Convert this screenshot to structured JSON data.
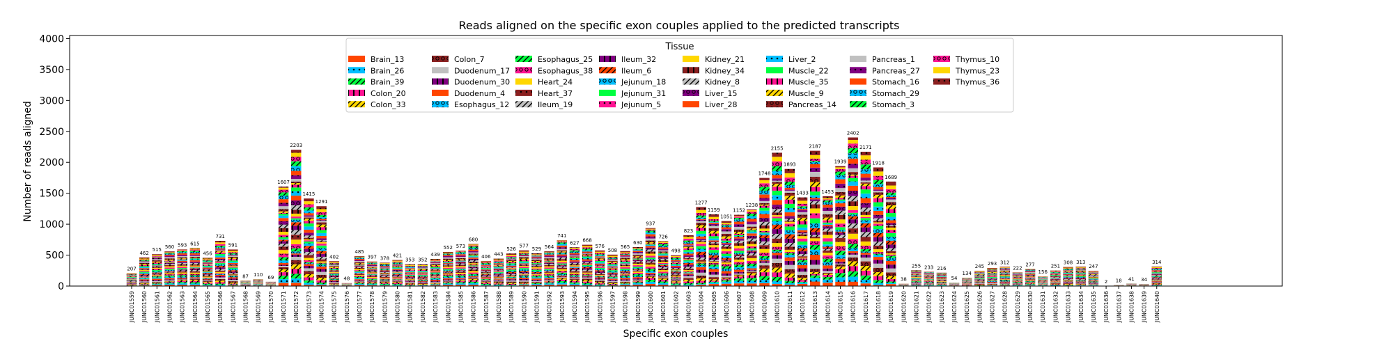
{
  "chart_data": {
    "type": "bar",
    "stacked": true,
    "title": "Reads aligned on the specific exon couples applied to the predicted transcripts",
    "xlabel": "Specific exon couples",
    "ylabel": "Number of reads aligned",
    "ylim": [
      0,
      4050
    ],
    "yticks": [
      0,
      500,
      1000,
      1500,
      2000,
      2500,
      3000,
      3500,
      4000
    ],
    "legend_title": "Tissue",
    "legend_position": "top-center",
    "grid": false,
    "categories": [
      "JUNC01559",
      "JUNC01560",
      "JUNC01561",
      "JUNC01562",
      "JUNC01563",
      "JUNC01564",
      "JUNC01565",
      "JUNC01566",
      "JUNC01567",
      "JUNC01568",
      "JUNC01569",
      "JUNC01570",
      "JUNC01571",
      "JUNC01572",
      "JUNC01573",
      "JUNC01574",
      "JUNC01575",
      "JUNC01576",
      "JUNC01577",
      "JUNC01578",
      "JUNC01579",
      "JUNC01580",
      "JUNC01581",
      "JUNC01582",
      "JUNC01583",
      "JUNC01584",
      "JUNC01585",
      "JUNC01586",
      "JUNC01587",
      "JUNC01588",
      "JUNC01589",
      "JUNC01590",
      "JUNC01591",
      "JUNC01592",
      "JUNC01593",
      "JUNC01594",
      "JUNC01595",
      "JUNC01596",
      "JUNC01597",
      "JUNC01598",
      "JUNC01599",
      "JUNC01600",
      "JUNC01601",
      "JUNC01602",
      "JUNC01603",
      "JUNC01604",
      "JUNC01605",
      "JUNC01606",
      "JUNC01607",
      "JUNC01608",
      "JUNC01609",
      "JUNC01610",
      "JUNC01611",
      "JUNC01612",
      "JUNC01613",
      "JUNC01614",
      "JUNC01615",
      "JUNC01616",
      "JUNC01617",
      "JUNC01618",
      "JUNC01619",
      "JUNC01620",
      "JUNC01621",
      "JUNC01622",
      "JUNC01623",
      "JUNC01624",
      "JUNC01625",
      "JUNC01626",
      "JUNC01627",
      "JUNC01628",
      "JUNC01629",
      "JUNC01630",
      "JUNC01631",
      "JUNC01632",
      "JUNC01633",
      "JUNC01634",
      "JUNC01635",
      "JUNC01636",
      "JUNC01637",
      "JUNC01638",
      "JUNC01639",
      "JUNC01640"
    ],
    "totals": [
      207,
      462,
      515,
      560,
      593,
      615,
      456,
      731,
      591,
      87,
      110,
      69,
      1607,
      2203,
      1415,
      1291,
      402,
      48,
      485,
      397,
      378,
      421,
      353,
      352,
      439,
      552,
      573,
      680,
      406,
      443,
      526,
      577,
      529,
      564,
      741,
      627,
      668,
      576,
      508,
      565,
      630,
      937,
      726,
      498,
      823,
      1277,
      1159,
      1051,
      1152,
      1238,
      1748,
      2155,
      1893,
      1433,
      2187,
      1453,
      1939,
      2402,
      2171,
      1918,
      1689,
      38,
      255,
      233,
      216,
      54,
      134,
      245,
      293,
      312,
      222,
      277,
      156,
      251,
      308,
      313,
      247,
      2,
      18,
      41,
      34,
      314
    ],
    "series": [
      {
        "name": "Brain_13",
        "color": "#ff4500",
        "hatch": ""
      },
      {
        "name": "Brain_26",
        "color": "#00bfff",
        "hatch": "."
      },
      {
        "name": "Brain_39",
        "color": "#00ff40",
        "hatch": "/"
      },
      {
        "name": "Colon_20",
        "color": "#ff1493",
        "hatch": "|"
      },
      {
        "name": "Colon_33",
        "color": "#ffd700",
        "hatch": "/"
      },
      {
        "name": "Colon_7",
        "color": "#8b2020",
        "hatch": "o"
      },
      {
        "name": "Duodenum_17",
        "color": "#c0c0c0",
        "hatch": ""
      },
      {
        "name": "Duodenum_30",
        "color": "#800080",
        "hatch": "|"
      },
      {
        "name": "Duodenum_4",
        "color": "#ff4500",
        "hatch": ""
      },
      {
        "name": "Esophagus_12",
        "color": "#00bfff",
        "hatch": "o"
      },
      {
        "name": "Esophagus_25",
        "color": "#00ff40",
        "hatch": "/"
      },
      {
        "name": "Esophagus_38",
        "color": "#ff1493",
        "hatch": "o"
      },
      {
        "name": "Heart_24",
        "color": "#ffd700",
        "hatch": ""
      },
      {
        "name": "Heart_37",
        "color": "#8b2020",
        "hatch": "."
      },
      {
        "name": "Ileum_19",
        "color": "#c0c0c0",
        "hatch": "/"
      },
      {
        "name": "Ileum_32",
        "color": "#800080",
        "hatch": "|"
      },
      {
        "name": "Ileum_6",
        "color": "#ff4500",
        "hatch": "/"
      },
      {
        "name": "Jejunum_18",
        "color": "#00bfff",
        "hatch": "o"
      },
      {
        "name": "Jejunum_31",
        "color": "#00ff40",
        "hatch": ""
      },
      {
        "name": "Jejunum_5",
        "color": "#ff1493",
        "hatch": "."
      },
      {
        "name": "Kidney_21",
        "color": "#ffd700",
        "hatch": ""
      },
      {
        "name": "Kidney_34",
        "color": "#8b2020",
        "hatch": "|"
      },
      {
        "name": "Kidney_8",
        "color": "#c0c0c0",
        "hatch": "/"
      },
      {
        "name": "Liver_15",
        "color": "#800080",
        "hatch": "o"
      },
      {
        "name": "Liver_28",
        "color": "#ff4500",
        "hatch": ""
      },
      {
        "name": "Liver_2",
        "color": "#00bfff",
        "hatch": "."
      },
      {
        "name": "Muscle_22",
        "color": "#00ff40",
        "hatch": ""
      },
      {
        "name": "Muscle_35",
        "color": "#ff1493",
        "hatch": "|"
      },
      {
        "name": "Muscle_9",
        "color": "#ffd700",
        "hatch": "/"
      },
      {
        "name": "Pancreas_14",
        "color": "#8b2020",
        "hatch": "o"
      },
      {
        "name": "Pancreas_1",
        "color": "#c0c0c0",
        "hatch": ""
      },
      {
        "name": "Pancreas_27",
        "color": "#800080",
        "hatch": "."
      },
      {
        "name": "Stomach_16",
        "color": "#ff4500",
        "hatch": ""
      },
      {
        "name": "Stomach_29",
        "color": "#00bfff",
        "hatch": "o"
      },
      {
        "name": "Stomach_3",
        "color": "#00ff40",
        "hatch": "/"
      },
      {
        "name": "Thymus_10",
        "color": "#ff1493",
        "hatch": "o"
      },
      {
        "name": "Thymus_23",
        "color": "#ffd700",
        "hatch": ""
      },
      {
        "name": "Thymus_36",
        "color": "#8b2020",
        "hatch": "."
      }
    ]
  }
}
